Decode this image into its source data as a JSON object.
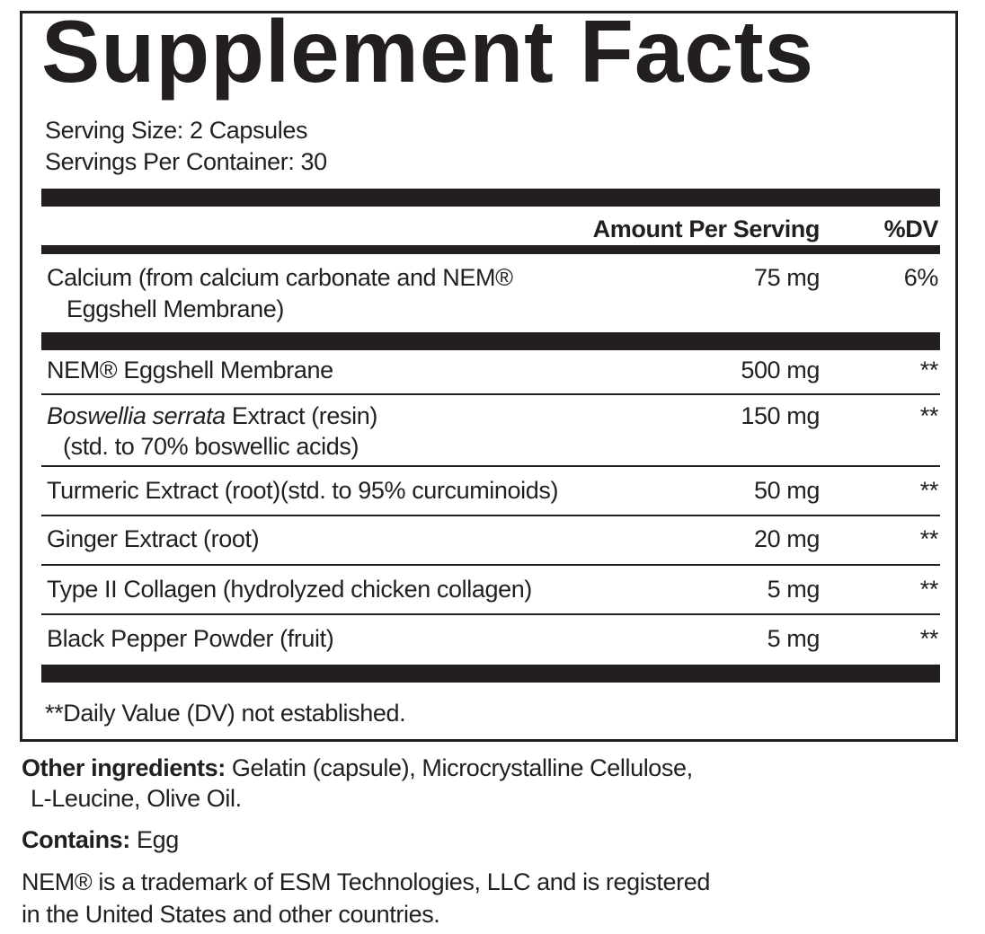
{
  "title": "Supplement Facts",
  "serving_size": "Serving Size: 2 Capsules",
  "servings_per_container": "Servings Per Container: 30",
  "header": {
    "amount": "Amount Per Serving",
    "dv": "%DV"
  },
  "rows": [
    {
      "name": "Calcium (from calcium carbonate and NEM®",
      "name2": "Eggshell Membrane)",
      "amount": "75 mg",
      "dv": "6%"
    },
    {
      "name": "NEM® Eggshell Membrane",
      "amount": "500 mg",
      "dv": "**"
    },
    {
      "name_italic": "Boswellia serrata",
      "name": " Extract (resin)",
      "name2": "(std. to 70% boswellic acids)",
      "amount": "150 mg",
      "dv": "**"
    },
    {
      "name": "Turmeric Extract (root)(std. to 95% curcuminoids)",
      "amount": "50 mg",
      "dv": "**"
    },
    {
      "name": "Ginger Extract (root)",
      "amount": "20 mg",
      "dv": "**"
    },
    {
      "name": "Type II Collagen (hydrolyzed chicken collagen)",
      "amount": "5 mg",
      "dv": "**"
    },
    {
      "name": "Black Pepper Powder (fruit)",
      "amount": "5 mg",
      "dv": "**"
    }
  ],
  "footnote": "**Daily Value (DV) not established.",
  "other_ingredients": {
    "label": "Other ingredients:",
    "text": " Gelatin (capsule), Microcrystalline Cellulose,",
    "text2": "L-Leucine, Olive Oil."
  },
  "contains": {
    "label": "Contains:",
    "text": " Egg"
  },
  "trademark": {
    "line1": "NEM® is a trademark of ESM Technologies, LLC and is registered",
    "line2": "in the United States and other countries."
  }
}
